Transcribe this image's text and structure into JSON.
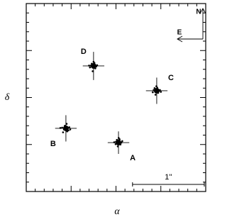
{
  "chart_data": {
    "type": "scatter",
    "x_label": "α",
    "y_label": "δ",
    "xlim": [
      0,
      1
    ],
    "ylim": [
      0,
      1
    ],
    "xticks": [
      0,
      0.05,
      0.1,
      0.15,
      0.2,
      0.25,
      0.3,
      0.35,
      0.4,
      0.45,
      0.5,
      0.55,
      0.6,
      0.65,
      0.7,
      0.75,
      0.8,
      0.85,
      0.9,
      0.95,
      1
    ],
    "yticks": [
      0,
      0.05,
      0.1,
      0.15,
      0.2,
      0.25,
      0.3,
      0.35,
      0.4,
      0.45,
      0.5,
      0.55,
      0.6,
      0.65,
      0.7,
      0.75,
      0.8,
      0.85,
      0.9,
      0.95,
      1
    ],
    "color": "#000000",
    "compass": {
      "north": "N",
      "east": "E"
    },
    "scale_bar": {
      "label": "1''",
      "length": 0.4
    },
    "series": [
      {
        "name": "D",
        "label_side": "upper-left",
        "x": 0.375,
        "y": 0.668,
        "xerr": 0.06,
        "yerr": 0.075,
        "points_x": [
          0.36,
          0.37,
          0.38,
          0.39,
          0.365,
          0.385,
          0.35,
          0.375,
          0.37,
          0.395,
          0.355,
          0.38
        ],
        "points_y": [
          0.67,
          0.66,
          0.675,
          0.665,
          0.68,
          0.655,
          0.67,
          0.69,
          0.64,
          0.672,
          0.66,
          0.684
        ]
      },
      {
        "name": "C",
        "label_side": "upper-right",
        "x": 0.727,
        "y": 0.536,
        "xerr": 0.06,
        "yerr": 0.07,
        "points_x": [
          0.71,
          0.72,
          0.73,
          0.74,
          0.715,
          0.735,
          0.75,
          0.725,
          0.72,
          0.745,
          0.705,
          0.73
        ],
        "points_y": [
          0.54,
          0.53,
          0.545,
          0.535,
          0.55,
          0.525,
          0.53,
          0.56,
          0.515,
          0.54,
          0.528,
          0.552
        ]
      },
      {
        "name": "B",
        "label_side": "lower-left",
        "x": 0.221,
        "y": 0.336,
        "xerr": 0.06,
        "yerr": 0.07,
        "points_x": [
          0.2,
          0.21,
          0.22,
          0.23,
          0.215,
          0.235,
          0.245,
          0.225,
          0.205,
          0.24,
          0.19,
          0.228
        ],
        "points_y": [
          0.34,
          0.33,
          0.345,
          0.335,
          0.35,
          0.325,
          0.33,
          0.36,
          0.315,
          0.342,
          0.338,
          0.32
        ]
      },
      {
        "name": "A",
        "label_side": "lower-right",
        "x": 0.514,
        "y": 0.26,
        "xerr": 0.06,
        "yerr": 0.06,
        "points_x": [
          0.5,
          0.51,
          0.52,
          0.53,
          0.505,
          0.525,
          0.49,
          0.515,
          0.51,
          0.535,
          0.498,
          0.52
        ],
        "points_y": [
          0.265,
          0.255,
          0.27,
          0.26,
          0.275,
          0.25,
          0.262,
          0.285,
          0.24,
          0.268,
          0.252,
          0.278
        ]
      }
    ]
  }
}
